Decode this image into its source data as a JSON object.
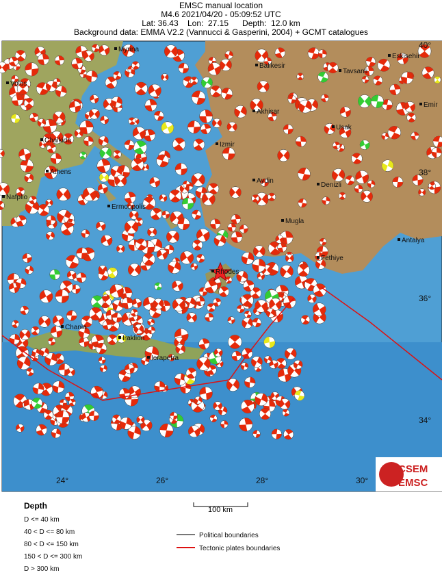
{
  "header": {
    "title": "EMSC manual location",
    "event": "M4.6  2021/04/20 - 05:09:52 UTC",
    "location": "Lat: 36.43    Lon:  27.15      Depth:  12.0 km",
    "background": "Background data: EMMA V2.2 (Vannucci & Gasperini, 2004) + GCMT catalogues"
  },
  "map": {
    "cities": [
      "Myrina",
      "Volos",
      "Balikesir",
      "Tavsanli",
      "Eskisehir",
      "Akhisar",
      "Emir",
      "Chalkida",
      "Usak",
      "Izmir",
      "Athens",
      "Aydin",
      "Denizli",
      "Nafplio",
      "Ermoupolis",
      "Mugla",
      "Antalya",
      "Fethiye",
      "Chania",
      "Iraklion",
      "Ierapetra",
      "Rhodes"
    ],
    "lon_labels": [
      "24°",
      "26°",
      "28°",
      "30°"
    ],
    "lat_labels": [
      "40°",
      "38°",
      "36°",
      "34°"
    ],
    "scale": "100 km"
  },
  "legend": {
    "title": "Depth",
    "depth_classes": [
      "D <= 40 km",
      "40 < D <= 80 km",
      "80 < D <= 150 km",
      "150 < D <= 300 km",
      "D > 300 km"
    ],
    "lines": [
      "Political boundaries",
      "Tectonic plates boundaries"
    ]
  },
  "logo": {
    "top": "CSEM",
    "bottom": "EMSC"
  }
}
